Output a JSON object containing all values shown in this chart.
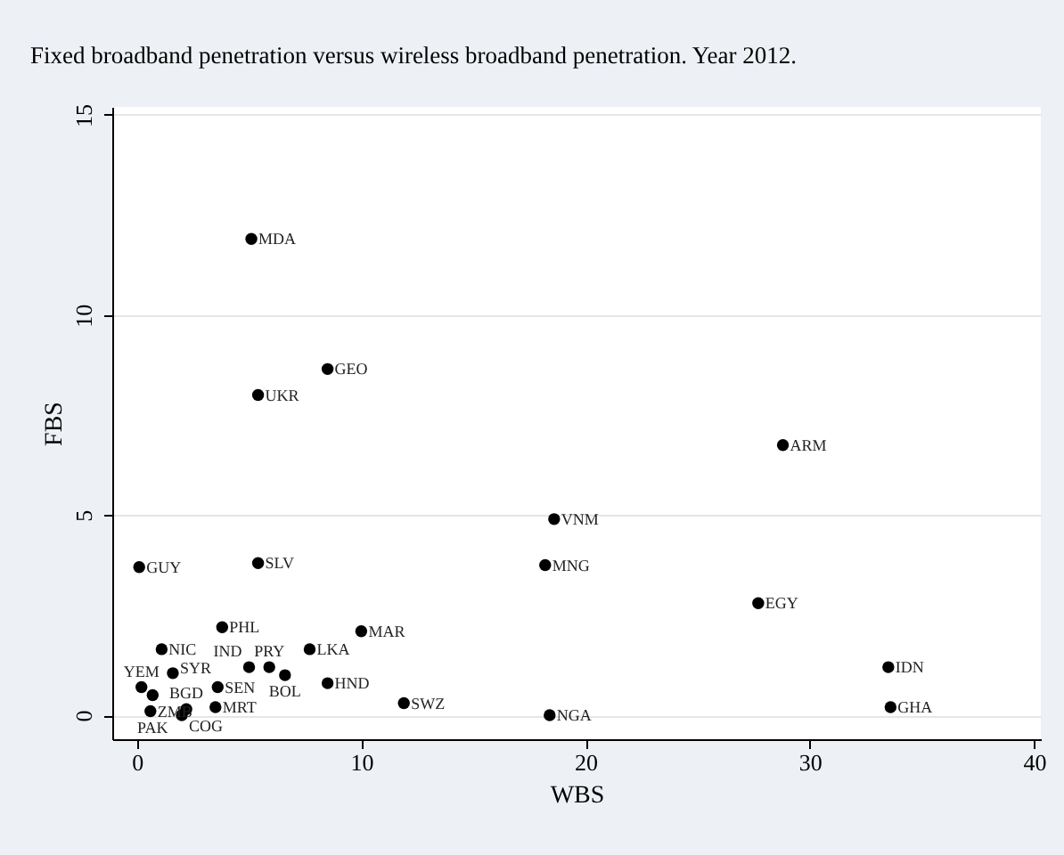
{
  "chart_data": {
    "type": "scatter",
    "title": "Fixed broadband penetration versus wireless broadband penetration. Year 2012.",
    "xlabel": "WBS",
    "ylabel": "FBS",
    "x": [
      5.1,
      8.5,
      5.4,
      28.8,
      18.6,
      18.2,
      0.1,
      5.4,
      27.7,
      3.8,
      10.0,
      7.7,
      1.1,
      33.5,
      1.6,
      5.0,
      5.9,
      6.6,
      8.5,
      11.9,
      18.4,
      33.6,
      0.2,
      0.7,
      3.6,
      0.6,
      2.0,
      2.2,
      3.5
    ],
    "values": [
      11.9,
      8.65,
      8.0,
      6.75,
      4.9,
      3.75,
      3.7,
      3.8,
      2.8,
      2.2,
      2.1,
      1.65,
      1.65,
      1.2,
      1.05,
      1.2,
      1.2,
      1.0,
      0.8,
      0.3,
      0.0,
      0.2,
      0.7,
      0.5,
      0.7,
      0.1,
      0.0,
      0.15,
      0.2
    ],
    "value_labels": [
      "MDA",
      "GEO",
      "UKR",
      "ARM",
      "VNM",
      "MNG",
      "GUY",
      "SLV",
      "EGY",
      "PHL",
      "MAR",
      "LKA",
      "NIC",
      "IDN",
      "SYR",
      "IND",
      "PRY",
      "BOL",
      "HND",
      "SWZ",
      "NGA",
      "GHA",
      "YEM",
      "PAK",
      "SEN",
      "ZMB",
      "COG",
      "BGD",
      "MRT"
    ],
    "color": "#000000",
    "marker": "circle",
    "xlim": [
      -1.1,
      40.3
    ],
    "ylim": [
      -0.6,
      15.2
    ],
    "xticks": [
      0,
      10,
      20,
      30,
      40
    ],
    "yticks": [
      0,
      5,
      10,
      15
    ],
    "grid": "y"
  }
}
